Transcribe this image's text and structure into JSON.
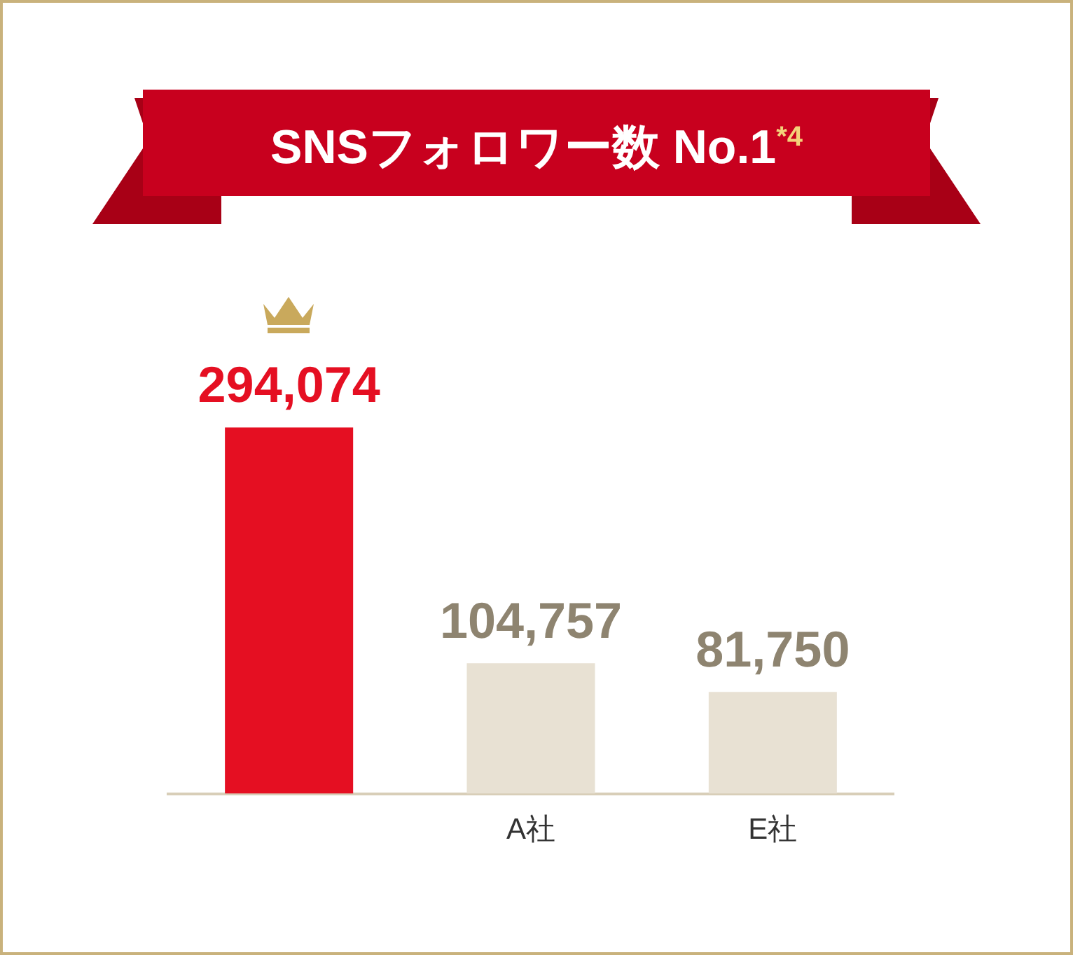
{
  "chart_data": {
    "type": "bar",
    "title": "SNSフォロワー数 No.1$^{*4}$",
    "categories": [
      null,
      "A社",
      "E社"
    ],
    "values": [
      294074,
      104757,
      81750
    ],
    "colors": [
      "#e50f22",
      "#e8e1d3",
      "#e8e1d3"
    ],
    "value_labels": [
      "294,074",
      "104,757",
      "81,750"
    ],
    "grid": false,
    "legend": false
  }
}
